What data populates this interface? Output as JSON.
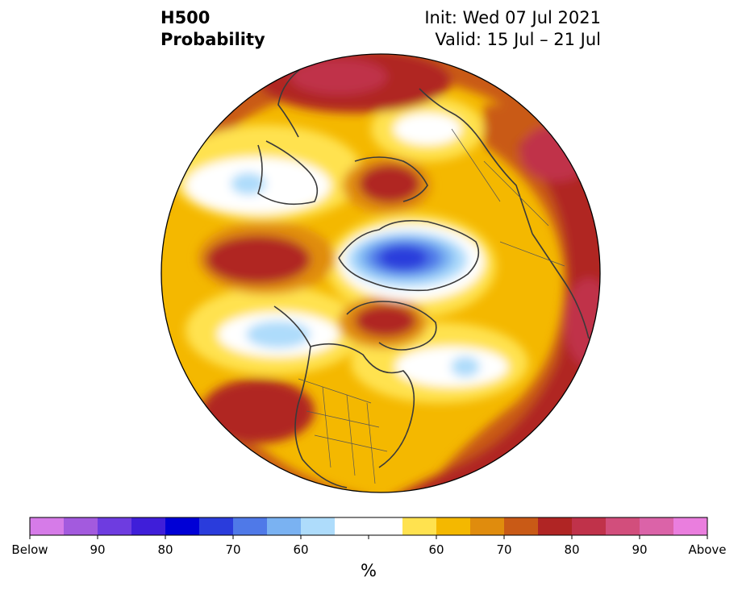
{
  "header": {
    "variable": "H500",
    "product": "Probability",
    "init": "Init: Wed 07 Jul 2021",
    "valid": "Valid: 15 Jul – 21 Jul"
  },
  "colorbar": {
    "unit": "%",
    "below_colors": [
      "#d67be8",
      "#a35ade",
      "#6e3ce0",
      "#3f1ed9",
      "#0000d6",
      "#2a3cdc",
      "#4f79e8",
      "#7ab2f2",
      "#aedcfb"
    ],
    "neutral_color": "#ffffff",
    "above_colors": [
      "#ffe24f",
      "#f4b800",
      "#e08c0d",
      "#c95a16",
      "#b02524",
      "#c0324a",
      "#d24e7c",
      "#db63a8",
      "#ea7ede"
    ],
    "labels": [
      {
        "text": "Below",
        "boundary": 0
      },
      {
        "text": "90",
        "boundary": 2
      },
      {
        "text": "80",
        "boundary": 4
      },
      {
        "text": "70",
        "boundary": 6
      },
      {
        "text": "60",
        "boundary": 8
      },
      {
        "text": "60",
        "boundary": 12
      },
      {
        "text": "70",
        "boundary": 14
      },
      {
        "text": "80",
        "boundary": 16
      },
      {
        "text": "90",
        "boundary": 18
      },
      {
        "text": "Above",
        "boundary": 20
      }
    ]
  },
  "map": {
    "projection": "north-polar-stereographic",
    "field": "500 hPa height tercile probability",
    "region_outline_color": "#3a3a3a"
  }
}
